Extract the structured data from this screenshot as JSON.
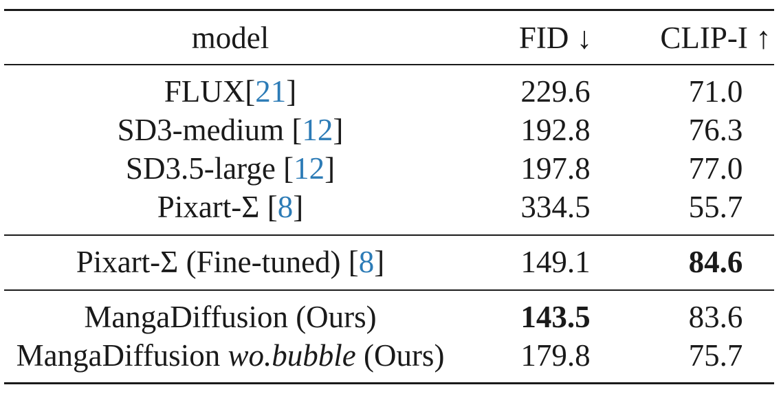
{
  "table": {
    "headers": {
      "model": "model",
      "fid": "FID ↓",
      "clip": "CLIP-I ↑"
    },
    "rows": [
      {
        "model": "FLUX",
        "cite_pre": "[",
        "cite": "21",
        "cite_post": "]",
        "fid": "229.6",
        "clip": "71.0",
        "bold": null
      },
      {
        "model": "SD3-medium ",
        "cite_pre": "[",
        "cite": "12",
        "cite_post": "]",
        "fid": "192.8",
        "clip": "76.3",
        "bold": null
      },
      {
        "model": "SD3.5-large ",
        "cite_pre": "[",
        "cite": "12",
        "cite_post": "]",
        "fid": "197.8",
        "clip": "77.0",
        "bold": null
      },
      {
        "model": "Pixart-Σ ",
        "cite_pre": "[",
        "cite": "8",
        "cite_post": "]",
        "fid": "334.5",
        "clip": "55.7",
        "bold": null
      },
      {
        "model": "Pixart-Σ (Fine-tuned) ",
        "cite_pre": "[",
        "cite": "8",
        "cite_post": "]",
        "fid": "149.1",
        "clip": "84.6",
        "bold": "clip"
      },
      {
        "model": "MangaDiffusion (Ours)",
        "fid": "143.5",
        "clip": "83.6",
        "bold": "fid"
      },
      {
        "model_pre": "MangaDiffusion ",
        "model_ital": "wo.bubble",
        "model_post": " (Ours)",
        "fid": "179.8",
        "clip": "75.7",
        "bold": null
      }
    ]
  }
}
